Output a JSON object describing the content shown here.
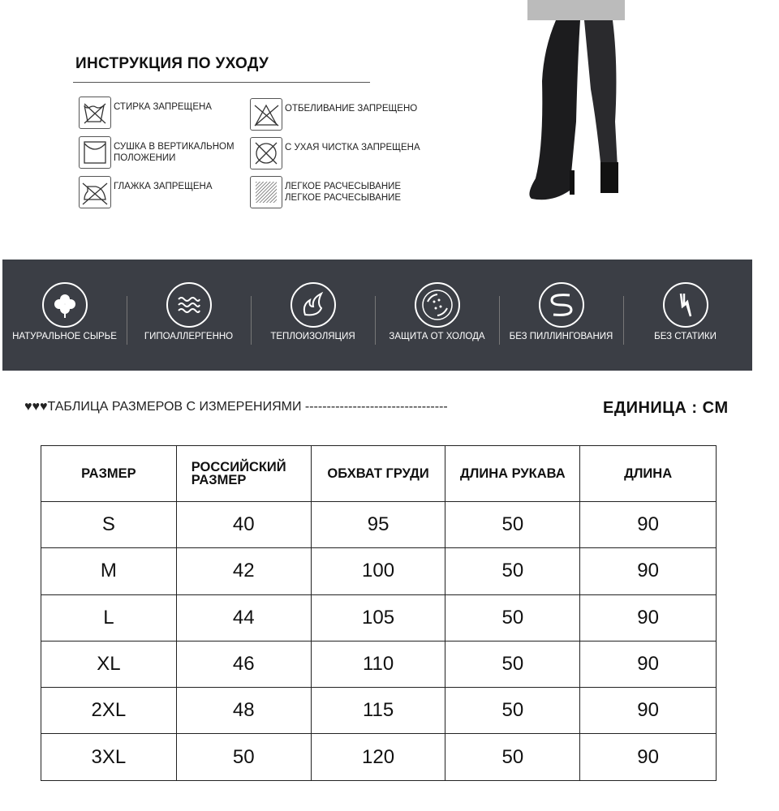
{
  "care": {
    "title": "ИНСТРУКЦИЯ ПО УХОДУ",
    "items": [
      {
        "icon": "no-wash-icon",
        "label": "СТИРКА ЗАПРЕЩЕНА"
      },
      {
        "icon": "no-bleach-icon",
        "label": "ОТБЕЛИВАНИЕ ЗАПРЕЩЕНО"
      },
      {
        "icon": "dry-flat-icon",
        "label": "СУШКА В ВЕРТИКАЛЬНОМ",
        "label2": "ПОЛОЖЕНИИ"
      },
      {
        "icon": "no-dry-clean-icon",
        "label": "С УХАЯ ЧИСТКА ЗАПРЕЩЕНА"
      },
      {
        "icon": "no-iron-icon",
        "label": "ГЛАЖКА ЗАПРЕЩЕНА"
      },
      {
        "icon": "gentle-comb-icon",
        "label": "ЛЕГКОЕ РАСЧЕСЫВАНИЕ",
        "label2": "ЛЕГКОЕ РАСЧЕСЫВАНИЕ"
      }
    ]
  },
  "features": [
    {
      "icon": "clover-icon",
      "label": "НАТУРАЛЬНОЕ СЫРЬЕ"
    },
    {
      "icon": "waves-icon",
      "label": "ГИПОАЛЛЕРГЕННО"
    },
    {
      "icon": "flame-icon",
      "label": "ТЕПЛОИЗОЛЯЦИЯ"
    },
    {
      "icon": "snow-shield-icon",
      "label": "ЗАЩИТА ОТ ХОЛОДА"
    },
    {
      "icon": "no-pilling-icon",
      "label": "БЕЗ ПИЛЛИНГОВАНИЯ"
    },
    {
      "icon": "lightning-icon",
      "label": "БЕЗ СТАТИКИ"
    }
  ],
  "size_table": {
    "heading": "♥♥♥ТАБЛИЦА РАЗМЕРОВ С ИЗМЕРЕНИЯМИ ---------------------------------",
    "unit": "ЕДИНИЦА :  CM",
    "columns": [
      "РАЗМЕР",
      "РОССИЙСКИЙ РАЗМЕР",
      "ОБХВАТ ГРУДИ",
      "ДЛИНА РУКАВА",
      "ДЛИНА"
    ],
    "rows": [
      [
        "S",
        "40",
        "95",
        "50",
        "90"
      ],
      [
        "M",
        "42",
        "100",
        "50",
        "90"
      ],
      [
        "L",
        "44",
        "105",
        "50",
        "90"
      ],
      [
        "XL",
        "46",
        "110",
        "50",
        "90"
      ],
      [
        "2XL",
        "48",
        "115",
        "50",
        "90"
      ],
      [
        "3XL",
        "50",
        "120",
        "50",
        "90"
      ]
    ]
  }
}
